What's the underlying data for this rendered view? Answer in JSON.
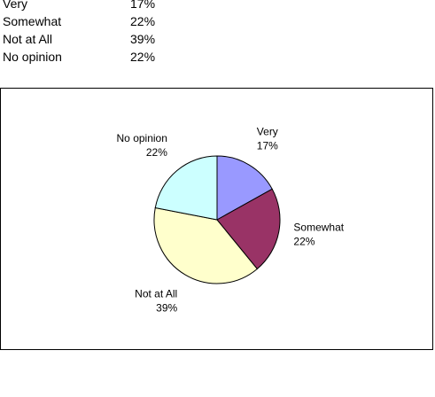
{
  "table": {
    "rows": [
      {
        "label": "Very",
        "value": "17%"
      },
      {
        "label": "Somewhat",
        "value": "22%"
      },
      {
        "label": "Not at All",
        "value": "39%"
      },
      {
        "label": "No opinion",
        "value": "22%"
      }
    ]
  },
  "chart_data": {
    "type": "pie",
    "categories": [
      "Very",
      "Somewhat",
      "Not at All",
      "No opinion"
    ],
    "values": [
      17,
      22,
      39,
      22
    ],
    "value_labels": [
      "17%",
      "22%",
      "39%",
      "22%"
    ],
    "colors": [
      "#9999ff",
      "#993366",
      "#ffffcc",
      "#ccffff"
    ],
    "start_angle_deg": 0,
    "direction": "clockwise",
    "legend": "none",
    "title": ""
  }
}
